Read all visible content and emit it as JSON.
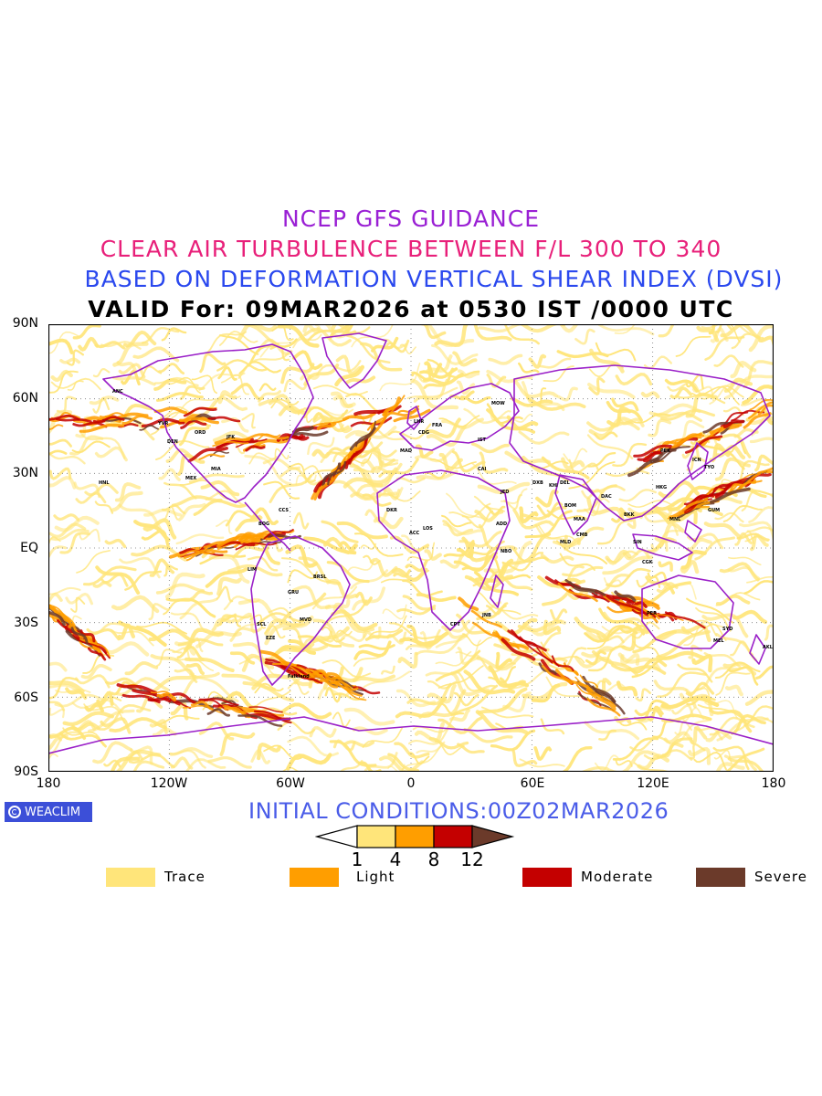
{
  "titles": {
    "line1": "NCEP GFS GUIDANCE",
    "line2": "CLEAR AIR TURBULENCE BETWEEN F/L 300 TO 340",
    "line3": "BASED ON DEFORMATION VERTICAL SHEAR INDEX (DVSI)",
    "line4": "VALID For: 09MAR2026 at 0530 IST /0000 UTC"
  },
  "colors": {
    "line1": "#9a20d4",
    "line2": "#e8207a",
    "line3": "#2a48ee",
    "line4": "#000000",
    "coastline": "#9a1fc8",
    "trace": "#ffe57a",
    "light": "#ff9e00",
    "moderate": "#c40000",
    "severe": "#6b3a2a",
    "badge": "#3c4fd8",
    "initial": "#4a5ce8"
  },
  "map": {
    "projection": "cylindrical equidistant",
    "lat_range": [
      -90,
      90
    ],
    "lon_range": [
      -180,
      180
    ],
    "lat_labels": [
      "90N",
      "60N",
      "30N",
      "EQ",
      "30S",
      "60S",
      "90S"
    ],
    "lon_labels": [
      "180",
      "120W",
      "60W",
      "0",
      "60E",
      "120E",
      "180"
    ],
    "station_labels": [
      "ANC",
      "YVR",
      "DEN",
      "ORD",
      "JFK",
      "MIA",
      "HNL",
      "MEX",
      "BOG",
      "LIM",
      "GRU",
      "EZE",
      "SCL",
      "MVD",
      "BRSL",
      "CCS",
      "LHR",
      "MAD",
      "CDG",
      "FRA",
      "MOW",
      "IST",
      "CAI",
      "JED",
      "DXB",
      "KHI",
      "DEL",
      "BOM",
      "MAA",
      "CMB",
      "DAC",
      "BKK",
      "SIN",
      "CGK",
      "HKG",
      "PEK",
      "ICN",
      "TYO",
      "GUM",
      "MNL",
      "SYD",
      "MEL",
      "PER",
      "AKL",
      "NBO",
      "ADD",
      "JNB",
      "CPT",
      "DKR",
      "LOS",
      "ACC",
      "MLD",
      "Falkland"
    ]
  },
  "initial_conditions": "INITIAL CONDITIONS:00Z02MAR2026",
  "badge": "WEACLIM",
  "colorbar": {
    "tick_labels": [
      "1",
      "4",
      "8",
      "12"
    ],
    "levels": [
      1,
      4,
      8,
      12
    ]
  },
  "legend": [
    {
      "label": "Trace",
      "color": "#ffe57a"
    },
    {
      "label": "Light",
      "color": "#ff9e00"
    },
    {
      "label": "Moderate",
      "color": "#c40000"
    },
    {
      "label": "Severe",
      "color": "#6b3a2a"
    }
  ]
}
